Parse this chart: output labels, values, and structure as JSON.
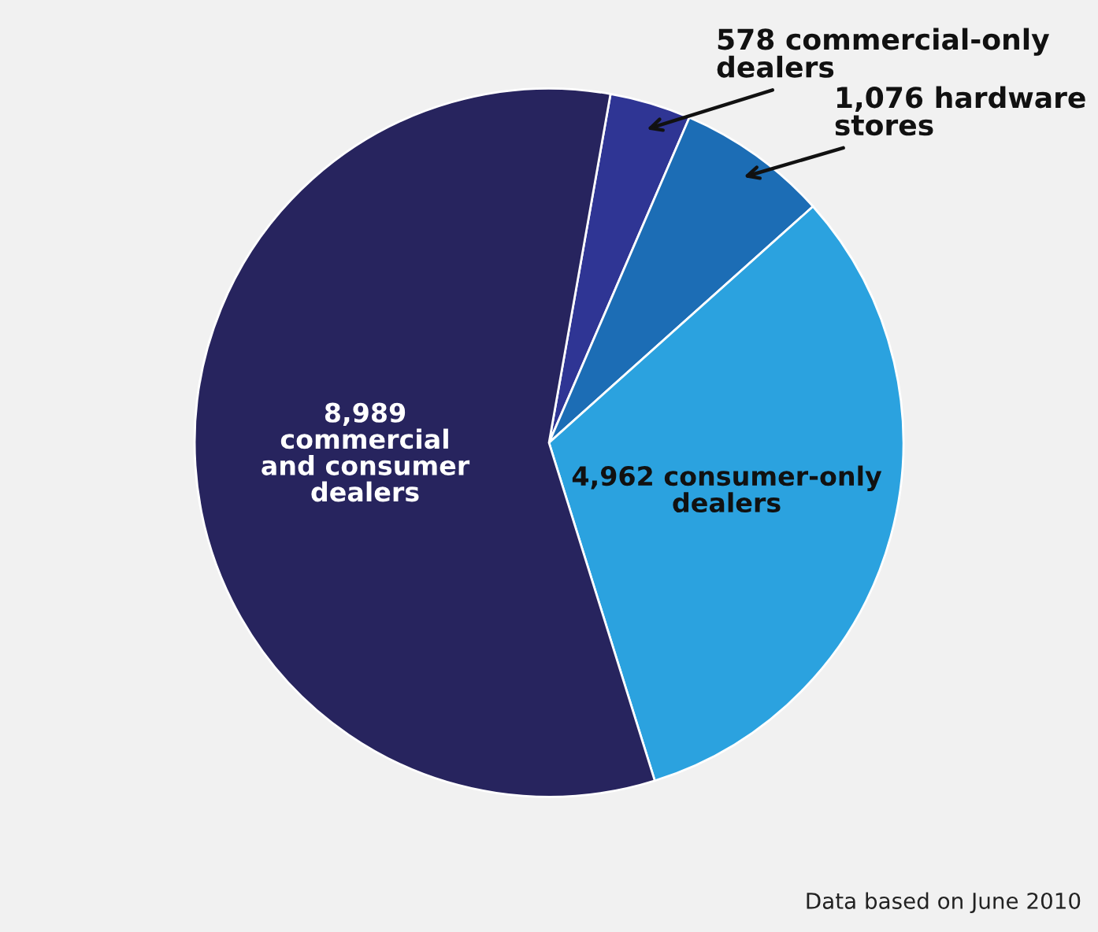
{
  "chart_data": {
    "type": "pie",
    "categories": [
      "578 commercial-only\ndealers",
      "1,076 hardware\nstores",
      "4,962 consumer-only\ndealers",
      "8,989\ncommercial\nand consumer\ndealers"
    ],
    "values": [
      578,
      1076,
      4962,
      8989
    ],
    "colors": [
      "#2f3594",
      "#1c6db5",
      "#2ba2df",
      "#27245e"
    ],
    "annotations": [
      "Data based on June 2010"
    ]
  }
}
